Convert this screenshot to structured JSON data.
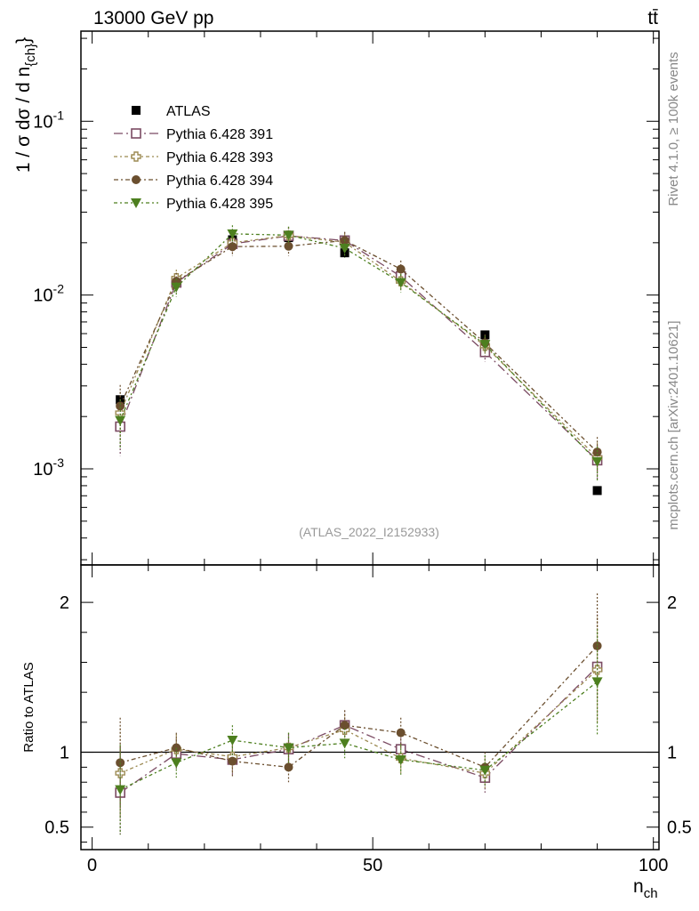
{
  "header": {
    "process_label": "13000 GeV pp",
    "final_state_label": "tt̄"
  },
  "side_text": {
    "rivet": "Rivet 4.1.0, ≥ 100k events",
    "source": "mcplots.cern.ch [arXiv:2401.10621]"
  },
  "chart_data": [
    {
      "type": "scatter",
      "panel": "main",
      "title": "(ATLAS_2022_I2152933)",
      "xlabel": "n_ch",
      "ylabel": "1 / σ dσ / d n_{ch}",
      "yscale": "log",
      "xlim": [
        -2,
        101
      ],
      "ylim": [
        0.00028,
        0.33
      ],
      "x": [
        5,
        15,
        25,
        35,
        45,
        55,
        70,
        90
      ],
      "series": [
        {
          "name": "ATLAS",
          "marker": "square-filled",
          "color": "#000000",
          "values": [
            0.0025,
            0.0121,
            0.0208,
            0.0214,
            0.0175,
            0.0125,
            0.0059,
            0.00075
          ]
        },
        {
          "name": "Pythia 6.428 391",
          "marker": "square-open",
          "color": "#7b4b63",
          "values": [
            0.00175,
            0.0118,
            0.0197,
            0.0219,
            0.0206,
            0.0128,
            0.0047,
            0.00112
          ]
        },
        {
          "name": "Pythia 6.428 393",
          "marker": "cross-open",
          "color": "#9c8a52",
          "values": [
            0.0021,
            0.0125,
            0.02,
            0.022,
            0.0201,
            0.012,
            0.0051,
            0.00116
          ]
        },
        {
          "name": "Pythia 6.428 394",
          "marker": "circle-filled",
          "color": "#6b4f2f",
          "values": [
            0.0023,
            0.012,
            0.019,
            0.0191,
            0.0206,
            0.0141,
            0.0053,
            0.00125
          ]
        },
        {
          "name": "Pythia 6.428 395",
          "marker": "triangle-down-filled",
          "color": "#4d7f1f",
          "values": [
            0.0019,
            0.0111,
            0.0225,
            0.0221,
            0.0186,
            0.0118,
            0.0052,
            0.0011
          ]
        }
      ],
      "y_tick_labels": [
        "10^{-3}",
        "10^{-2}",
        "10^{-1}"
      ]
    },
    {
      "type": "scatter",
      "panel": "ratio",
      "ylabel": "Ratio to ATLAS",
      "xlabel": "n_ch",
      "xlim": [
        -2,
        101
      ],
      "ylim": [
        0.35,
        2.25
      ],
      "reference_line": 1,
      "x": [
        5,
        15,
        25,
        35,
        45,
        55,
        70,
        90
      ],
      "x_tick_labels": [
        "0",
        "50",
        "100"
      ],
      "y_tick_labels": [
        "0.5",
        "1",
        "2"
      ],
      "series": [
        {
          "name": "Pythia 6.428 391",
          "values": [
            0.73,
            0.99,
            0.95,
            1.02,
            1.18,
            1.02,
            0.83,
            1.57
          ]
        },
        {
          "name": "Pythia 6.428 393",
          "values": [
            0.86,
            1.02,
            0.97,
            1.03,
            1.15,
            0.96,
            0.86,
            1.55
          ]
        },
        {
          "name": "Pythia 6.428 394",
          "values": [
            0.93,
            1.03,
            0.94,
            0.9,
            1.18,
            1.13,
            0.9,
            1.71
          ]
        },
        {
          "name": "Pythia 6.428 395",
          "values": [
            0.75,
            0.93,
            1.08,
            1.03,
            1.06,
            0.95,
            0.88,
            1.47
          ]
        }
      ]
    }
  ]
}
